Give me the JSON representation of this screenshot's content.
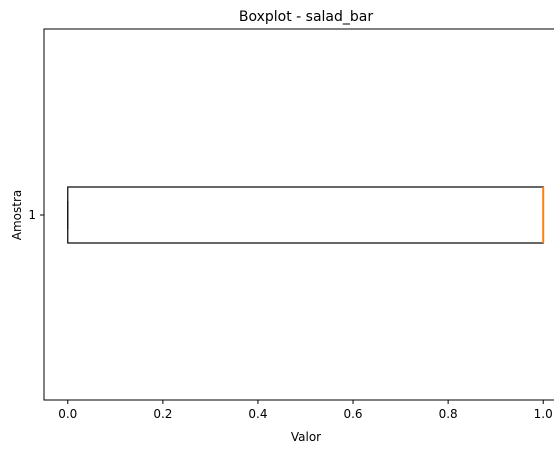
{
  "chart_data": {
    "type": "boxplot",
    "title": "Boxplot - salad_bar",
    "xlabel": "Valor",
    "ylabel": "Amostra",
    "orientation": "horizontal",
    "xlim": [
      -0.05,
      1.05
    ],
    "xticks": [
      "0.0",
      "0.2",
      "0.4",
      "0.6",
      "0.8",
      "1.0"
    ],
    "xtick_values": [
      0.0,
      0.2,
      0.4,
      0.6,
      0.8,
      1.0
    ],
    "yticks": [
      "1"
    ],
    "grid": false,
    "boxes": [
      {
        "label": "1",
        "whisker_low": 0.0,
        "q1": 0.0,
        "median": 1.0,
        "q3": 1.0,
        "whisker_high": 1.0
      }
    ],
    "colors": {
      "box": "#000000",
      "median": "#ff7f0e"
    }
  }
}
